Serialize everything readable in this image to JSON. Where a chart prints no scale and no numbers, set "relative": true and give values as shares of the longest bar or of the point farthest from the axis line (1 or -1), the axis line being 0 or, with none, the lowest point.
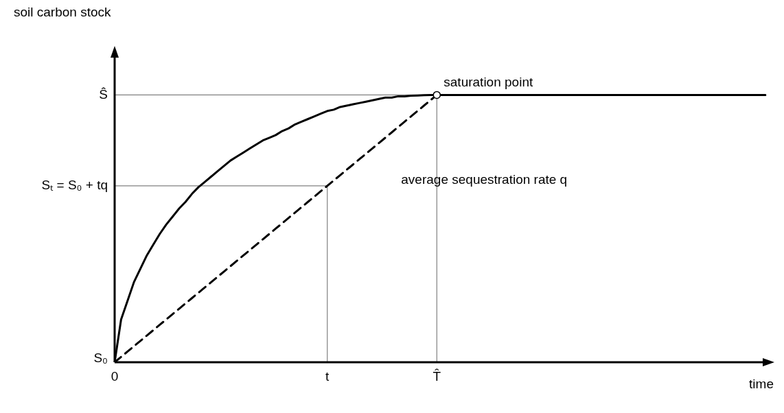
{
  "chart_data": {
    "type": "line",
    "relative": true,
    "xlabel": "time",
    "categories": [
      "0",
      null,
      null,
      null,
      null,
      null,
      null,
      null,
      null,
      null,
      null,
      null,
      null,
      null,
      null,
      null,
      null,
      null,
      null,
      null,
      null,
      null,
      null,
      null,
      null,
      null,
      null,
      null,
      null,
      null,
      null,
      null,
      null,
      "t",
      null,
      null,
      null,
      null,
      null,
      null,
      null,
      null,
      null,
      null,
      null,
      null,
      null,
      null,
      null,
      null,
      "T̂",
      null,
      null,
      null,
      null,
      null,
      null,
      null,
      null,
      null,
      null,
      null,
      null,
      null,
      null,
      null,
      null,
      null,
      null,
      null,
      null,
      null,
      null,
      null,
      null,
      null,
      null,
      null,
      null,
      null,
      null,
      null,
      null,
      null,
      null,
      null,
      null,
      null,
      null,
      null,
      null,
      null,
      null,
      null,
      null,
      null,
      null,
      null,
      null,
      null,
      null,
      null
    ],
    "grid": false,
    "legend": false,
    "marker": "none",
    "series": [
      {
        "color": "#000000",
        "line_style": "solid",
        "values": [
          0,
          0.16,
          0.23,
          0.3,
          0.35,
          0.4,
          0.44,
          0.48,
          0.515,
          0.545,
          0.575,
          0.6,
          0.63,
          0.655,
          0.675,
          0.695,
          0.715,
          0.735,
          0.755,
          0.77,
          0.785,
          0.8,
          0.815,
          0.83,
          0.84,
          0.85,
          0.865,
          0.875,
          0.89,
          0.9,
          0.91,
          0.92,
          0.93,
          0.94,
          0.945,
          0.955,
          0.96,
          0.965,
          0.97,
          0.975,
          0.98,
          0.985,
          0.99,
          0.99,
          0.995,
          0.995,
          0.997,
          0.998,
          0.999,
          1,
          1,
          1,
          1,
          1,
          1,
          1,
          1,
          1,
          1,
          1,
          1,
          1,
          1,
          1,
          1,
          1,
          1,
          1,
          1,
          1,
          1,
          1,
          1,
          1,
          1,
          1,
          1,
          1,
          1,
          1,
          1,
          1,
          1,
          1,
          1,
          1,
          1,
          1,
          1,
          1,
          1,
          1,
          1,
          1,
          1,
          1,
          1,
          1,
          1,
          1,
          1,
          1
        ]
      },
      {
        "color": "#000000",
        "line_style": "dashed",
        "values": [
          0,
          0.02,
          0.04,
          0.06,
          0.08,
          0.1,
          0.12,
          0.14,
          0.16,
          0.18,
          0.2,
          0.22,
          0.24,
          0.26,
          0.28,
          0.3,
          0.32,
          0.34,
          0.36,
          0.38,
          0.4,
          0.42,
          0.44,
          0.46,
          0.48,
          0.5,
          0.52,
          0.54,
          0.56,
          0.58,
          0.6,
          0.62,
          0.64,
          0.66,
          0.68,
          0.7,
          0.72,
          0.74,
          0.76,
          0.78,
          0.8,
          0.82,
          0.84,
          0.86,
          0.88,
          0.9,
          0.92,
          0.94,
          0.96,
          0.98,
          1,
          null,
          null,
          null,
          null,
          null,
          null,
          null,
          null,
          null,
          null,
          null,
          null,
          null,
          null,
          null,
          null,
          null,
          null,
          null,
          null,
          null,
          null,
          null,
          null,
          null,
          null,
          null,
          null,
          null,
          null,
          null,
          null,
          null,
          null,
          null,
          null,
          null,
          null,
          null,
          null,
          null,
          null,
          null,
          null,
          null,
          null,
          null,
          null,
          null,
          null,
          null
        ]
      }
    ],
    "ref_lines": [
      {
        "axis": "y",
        "value": 0.66,
        "label": "Sₜ = S₀ + tq",
        "color": "#808080"
      },
      {
        "axis": "y",
        "value": 1,
        "label": "Ŝ",
        "color": "#808080"
      },
      {
        "axis": "x",
        "value": "t",
        "color": "#808080"
      },
      {
        "axis": "x",
        "value": "T̂",
        "color": "#808080"
      }
    ],
    "annotations": [
      {
        "text": "saturation point",
        "x": "T̂",
        "y": 1
      },
      "soil carbon stock",
      "average sequestration rate q",
      "S₀"
    ]
  }
}
